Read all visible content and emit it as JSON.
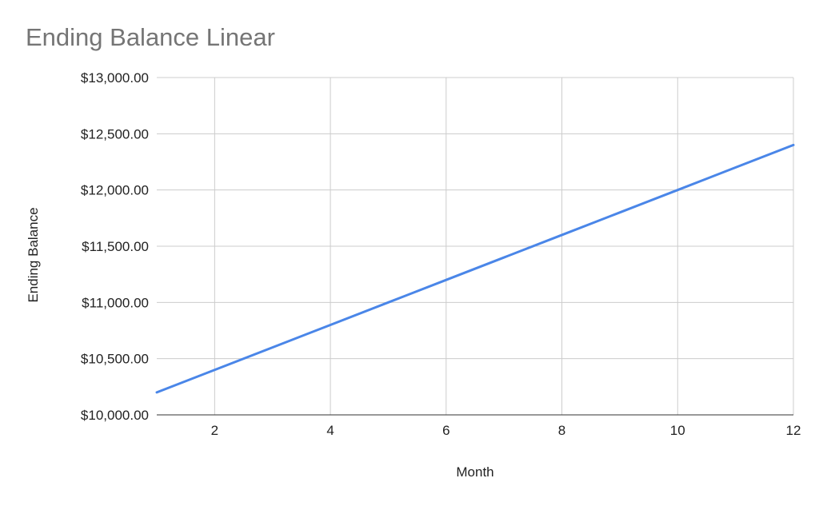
{
  "chart_data": {
    "type": "line",
    "title": "Ending Balance Linear",
    "xlabel": "Month",
    "ylabel": "Ending Balance",
    "x": [
      1,
      2,
      3,
      4,
      5,
      6,
      7,
      8,
      9,
      10,
      11,
      12
    ],
    "series": [
      {
        "values": [
          10200,
          10400,
          10600,
          10800,
          11000,
          11200,
          11400,
          11600,
          11800,
          12000,
          12200,
          12400
        ],
        "color": "#4a86e8"
      }
    ],
    "xlim": [
      1,
      12
    ],
    "ylim": [
      10000,
      13000
    ],
    "xticks": [
      2,
      4,
      6,
      8,
      10,
      12
    ],
    "yticks": [
      10000,
      10500,
      11000,
      11500,
      12000,
      12500,
      13000
    ],
    "ytick_labels": [
      "$10,000.00",
      "$10,500.00",
      "$11,000.00",
      "$11,500.00",
      "$12,000.00",
      "$12,500.00",
      "$13,000.00"
    ],
    "grid": true,
    "legend": "none"
  }
}
